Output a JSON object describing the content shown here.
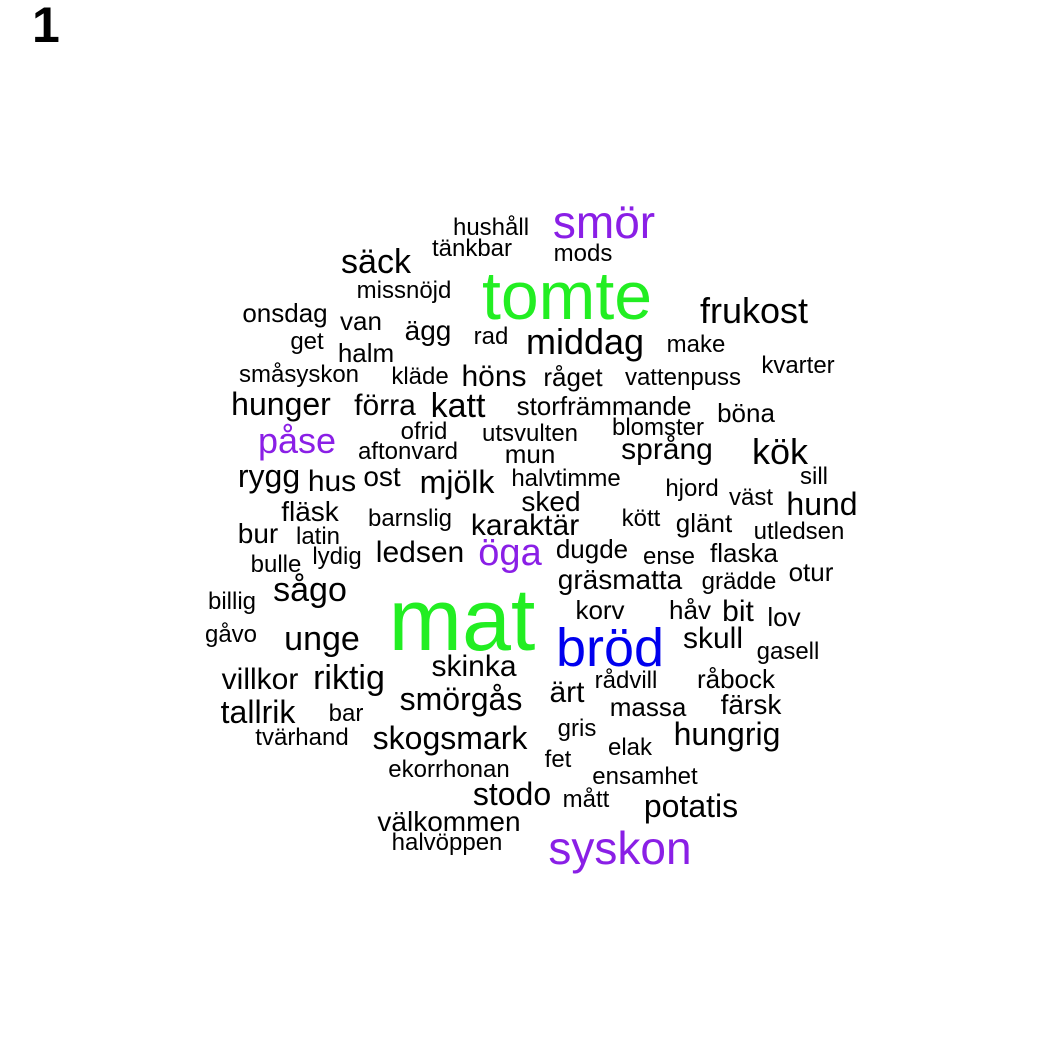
{
  "panel_label": "1",
  "colors": {
    "black": "#000000",
    "green": "#22ee22",
    "blue": "#0000ee",
    "purple": "#8a1fe6"
  },
  "words": [
    {
      "text": "mat",
      "color": "green"
    },
    {
      "text": "tomte",
      "color": "green"
    },
    {
      "text": "bröd",
      "color": "blue"
    },
    {
      "text": "smör",
      "color": "purple"
    },
    {
      "text": "syskon",
      "color": "purple"
    },
    {
      "text": "påse",
      "color": "purple"
    },
    {
      "text": "öga",
      "color": "purple"
    },
    {
      "text": "hushåll",
      "color": "black"
    },
    {
      "text": "tänkbar",
      "color": "black"
    },
    {
      "text": "mods",
      "color": "black"
    },
    {
      "text": "säck",
      "color": "black"
    },
    {
      "text": "missnöjd",
      "color": "black"
    },
    {
      "text": "frukost",
      "color": "black"
    },
    {
      "text": "onsdag",
      "color": "black"
    },
    {
      "text": "van",
      "color": "black"
    },
    {
      "text": "ägg",
      "color": "black"
    },
    {
      "text": "rad",
      "color": "black"
    },
    {
      "text": "middag",
      "color": "black"
    },
    {
      "text": "get",
      "color": "black"
    },
    {
      "text": "halm",
      "color": "black"
    },
    {
      "text": "make",
      "color": "black"
    },
    {
      "text": "småsyskon",
      "color": "black"
    },
    {
      "text": "kläde",
      "color": "black"
    },
    {
      "text": "höns",
      "color": "black"
    },
    {
      "text": "råget",
      "color": "black"
    },
    {
      "text": "vattenpuss",
      "color": "black"
    },
    {
      "text": "kvarter",
      "color": "black"
    },
    {
      "text": "hunger",
      "color": "black"
    },
    {
      "text": "förra",
      "color": "black"
    },
    {
      "text": "katt",
      "color": "black"
    },
    {
      "text": "storfrämmande",
      "color": "black"
    },
    {
      "text": "böna",
      "color": "black"
    },
    {
      "text": "ofrid",
      "color": "black"
    },
    {
      "text": "utsvulten",
      "color": "black"
    },
    {
      "text": "blomster",
      "color": "black"
    },
    {
      "text": "aftonvard",
      "color": "black"
    },
    {
      "text": "mun",
      "color": "black"
    },
    {
      "text": "språng",
      "color": "black"
    },
    {
      "text": "kök",
      "color": "black"
    },
    {
      "text": "rygg",
      "color": "black"
    },
    {
      "text": "hus",
      "color": "black"
    },
    {
      "text": "ost",
      "color": "black"
    },
    {
      "text": "mjölk",
      "color": "black"
    },
    {
      "text": "halvtimme",
      "color": "black"
    },
    {
      "text": "sill",
      "color": "black"
    },
    {
      "text": "hjord",
      "color": "black"
    },
    {
      "text": "väst",
      "color": "black"
    },
    {
      "text": "hund",
      "color": "black"
    },
    {
      "text": "fläsk",
      "color": "black"
    },
    {
      "text": "sked",
      "color": "black"
    },
    {
      "text": "barnslig",
      "color": "black"
    },
    {
      "text": "kött",
      "color": "black"
    },
    {
      "text": "glänt",
      "color": "black"
    },
    {
      "text": "bur",
      "color": "black"
    },
    {
      "text": "latin",
      "color": "black"
    },
    {
      "text": "karaktär",
      "color": "black"
    },
    {
      "text": "utledsen",
      "color": "black"
    },
    {
      "text": "dugde",
      "color": "black"
    },
    {
      "text": "ledsen",
      "color": "black"
    },
    {
      "text": "lydig",
      "color": "black"
    },
    {
      "text": "ense",
      "color": "black"
    },
    {
      "text": "flaska",
      "color": "black"
    },
    {
      "text": "bulle",
      "color": "black"
    },
    {
      "text": "otur",
      "color": "black"
    },
    {
      "text": "gräsmatta",
      "color": "black"
    },
    {
      "text": "grädde",
      "color": "black"
    },
    {
      "text": "sågo",
      "color": "black"
    },
    {
      "text": "billig",
      "color": "black"
    },
    {
      "text": "korv",
      "color": "black"
    },
    {
      "text": "håv",
      "color": "black"
    },
    {
      "text": "bit",
      "color": "black"
    },
    {
      "text": "lov",
      "color": "black"
    },
    {
      "text": "gåvo",
      "color": "black"
    },
    {
      "text": "unge",
      "color": "black"
    },
    {
      "text": "skull",
      "color": "black"
    },
    {
      "text": "gasell",
      "color": "black"
    },
    {
      "text": "skinka",
      "color": "black"
    },
    {
      "text": "villkor",
      "color": "black"
    },
    {
      "text": "riktig",
      "color": "black"
    },
    {
      "text": "rådvill",
      "color": "black"
    },
    {
      "text": "råbock",
      "color": "black"
    },
    {
      "text": "ärt",
      "color": "black"
    },
    {
      "text": "smörgås",
      "color": "black"
    },
    {
      "text": "tallrik",
      "color": "black"
    },
    {
      "text": "bar",
      "color": "black"
    },
    {
      "text": "massa",
      "color": "black"
    },
    {
      "text": "färsk",
      "color": "black"
    },
    {
      "text": "gris",
      "color": "black"
    },
    {
      "text": "tvärhand",
      "color": "black"
    },
    {
      "text": "skogsmark",
      "color": "black"
    },
    {
      "text": "hungrig",
      "color": "black"
    },
    {
      "text": "elak",
      "color": "black"
    },
    {
      "text": "fet",
      "color": "black"
    },
    {
      "text": "ekorrhonan",
      "color": "black"
    },
    {
      "text": "ensamhet",
      "color": "black"
    },
    {
      "text": "stodo",
      "color": "black"
    },
    {
      "text": "mått",
      "color": "black"
    },
    {
      "text": "potatis",
      "color": "black"
    },
    {
      "text": "välkommen",
      "color": "black"
    },
    {
      "text": "halvöppen",
      "color": "black"
    }
  ]
}
